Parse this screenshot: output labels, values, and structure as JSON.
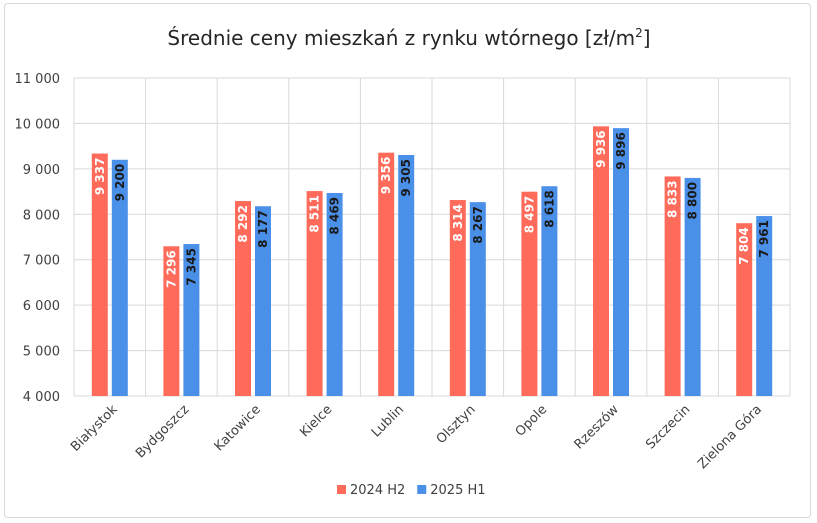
{
  "chart_data": {
    "type": "bar",
    "title": "Średnie ceny mieszkań z rynku wtórnego [zł/m",
    "title_sup": "2",
    "title_close": "]",
    "categories": [
      "Białystok",
      "Bydgoszcz",
      "Katowice",
      "Kielce",
      "Lublin",
      "Olsztyn",
      "Opole",
      "Rzeszów",
      "Szczecin",
      "Zielona Góra"
    ],
    "series": [
      {
        "name": "2024 H2",
        "color": "#ff6b5b",
        "values": [
          9337,
          7296,
          8292,
          8511,
          9356,
          8314,
          8497,
          9936,
          8833,
          7804
        ],
        "labels": [
          "9 337",
          "7 296",
          "8 292",
          "8 511",
          "9 356",
          "8 314",
          "8 497",
          "9 936",
          "8 833",
          "7 804"
        ],
        "label_color": "#ffffff"
      },
      {
        "name": "2025 H1",
        "color": "#4a90e8",
        "values": [
          9200,
          7345,
          8177,
          8469,
          9305,
          8267,
          8618,
          9896,
          8800,
          7961
        ],
        "labels": [
          "9 200",
          "7 345",
          "8 177",
          "8 469",
          "9 305",
          "8 267",
          "8 618",
          "9 896",
          "8 800",
          "7 961"
        ],
        "label_color": "#1a1a1a"
      }
    ],
    "ylim": [
      4000,
      11000
    ],
    "yticks": [
      4000,
      5000,
      6000,
      7000,
      8000,
      9000,
      10000,
      11000
    ],
    "ytick_labels": [
      "4 000",
      "5 000",
      "6 000",
      "7 000",
      "8 000",
      "9 000",
      "10 000",
      "11 000"
    ],
    "xlabel": "",
    "ylabel": "",
    "grid": true,
    "legend_position": "bottom-center"
  }
}
